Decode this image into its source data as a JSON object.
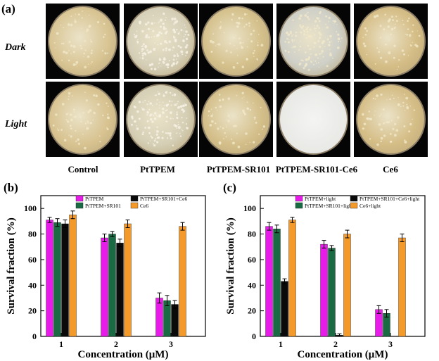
{
  "figure": {
    "panel_a_label": "(a)",
    "row_labels": [
      "Dark",
      "Light"
    ],
    "column_labels": [
      "Control",
      "PtTPEM",
      "PtTPEM-SR101",
      "PtTPEM-SR101-Ce6",
      "Ce6"
    ]
  },
  "chart_data": [
    {
      "panel_label": "(b)",
      "type": "bar",
      "categories": [
        "1",
        "2",
        "3"
      ],
      "xlabel": "Concentration (μM)",
      "ylabel": "Survival fraction (%)",
      "ylim": [
        0,
        110
      ],
      "yticks": [
        0,
        20,
        40,
        60,
        80,
        100
      ],
      "legend_position": "top",
      "series": [
        {
          "name": "PtTPEM",
          "color": "#e81ce8",
          "values": [
            91,
            77,
            30
          ],
          "errors": [
            2,
            3,
            4
          ]
        },
        {
          "name": "PtTPEM+SR101",
          "color": "#1a6b43",
          "values": [
            89,
            80,
            28
          ],
          "errors": [
            3,
            2,
            4
          ]
        },
        {
          "name": "PtTPEM+SR101+Ce6",
          "color": "#0a0a0a",
          "values": [
            88,
            73,
            25
          ],
          "errors": [
            3,
            3,
            3
          ]
        },
        {
          "name": "Ce6",
          "color": "#f39a2b",
          "values": [
            95,
            88,
            86
          ],
          "errors": [
            3,
            3,
            3
          ]
        }
      ]
    },
    {
      "panel_label": "(c)",
      "type": "bar",
      "categories": [
        "1",
        "2",
        "3"
      ],
      "xlabel": "Concentration (μM)",
      "ylabel": "Survival fraction (%)",
      "ylim": [
        0,
        110
      ],
      "yticks": [
        0,
        20,
        40,
        60,
        80,
        100
      ],
      "legend_position": "top",
      "series": [
        {
          "name": "PtTPEM+light",
          "color": "#e81ce8",
          "values": [
            86,
            72,
            21
          ],
          "errors": [
            3,
            3,
            3
          ]
        },
        {
          "name": "PtTPEM+SR101+light",
          "color": "#1a6b43",
          "values": [
            84,
            69,
            18
          ],
          "errors": [
            3,
            2,
            3
          ]
        },
        {
          "name": "PtTPEM+SR101+Ce6+light",
          "color": "#0a0a0a",
          "values": [
            43,
            1,
            0
          ],
          "errors": [
            2,
            1,
            0
          ]
        },
        {
          "name": "Ce6+light",
          "color": "#f39a2b",
          "values": [
            91,
            80,
            77
          ],
          "errors": [
            2,
            3,
            3
          ]
        }
      ]
    }
  ]
}
